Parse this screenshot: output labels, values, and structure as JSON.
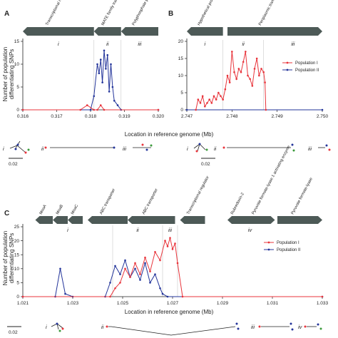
{
  "colors": {
    "population_1": "#e8343b",
    "population_2": "#23349a",
    "gene_arrow": "#4d5a57",
    "axis": "#222222"
  },
  "shared": {
    "ylabel_line1": "Number of population",
    "ylabel_line2": "differentiating SNPs",
    "xlabel": "Location in reference genome (Mb)",
    "scale_bar": "0.02"
  },
  "chart_data": [
    {
      "type": "line",
      "panel": "A",
      "xlim": [
        0.316,
        0.32
      ],
      "ylim": [
        0,
        15
      ],
      "xticks": [
        "0.316",
        "0.317",
        "0.318",
        "0.319",
        "0.320"
      ],
      "yticks": [
        "0",
        "5",
        "10",
        "15"
      ],
      "genes": [
        {
          "label": "Transcriptional regulator",
          "start": 0.316,
          "end": 0.3181,
          "dir": "left"
        },
        {
          "label": "MATE family transporter",
          "start": 0.3181,
          "end": 0.3189,
          "dir": "left"
        },
        {
          "label": "Polyphosphate phosphatase",
          "start": 0.3189,
          "end": 0.32,
          "dir": "left"
        }
      ],
      "regions": [
        {
          "label": "i",
          "start": 0.316,
          "end": 0.3181
        },
        {
          "label": "ii",
          "start": 0.3181,
          "end": 0.3189
        },
        {
          "label": "iii",
          "start": 0.3189,
          "end": 0.32
        }
      ],
      "series": [
        {
          "key": "population_1",
          "x": [
            0.316,
            0.3177,
            0.3179,
            0.3181,
            0.3182,
            0.3183,
            0.3184,
            0.32
          ],
          "y": [
            0,
            0,
            1,
            0,
            0,
            1,
            0,
            0
          ]
        },
        {
          "key": "population_2",
          "x": [
            0.316,
            0.318,
            0.3181,
            0.3182,
            0.31825,
            0.3183,
            0.31835,
            0.3184,
            0.31845,
            0.3185,
            0.31855,
            0.3186,
            0.31865,
            0.3187,
            0.3188,
            0.3189,
            0.32
          ],
          "y": [
            0,
            0,
            3,
            10,
            8,
            11,
            6,
            13,
            9,
            12,
            4,
            10,
            5,
            2,
            1,
            0,
            0
          ]
        }
      ]
    },
    {
      "type": "line",
      "panel": "B",
      "xlim": [
        2.747,
        2.75
      ],
      "ylim": [
        0,
        20
      ],
      "xticks": [
        "2.747",
        "2.748",
        "2.749",
        "2.750"
      ],
      "yticks": [
        "0",
        "5",
        "10",
        "15",
        "20"
      ],
      "genes": [
        {
          "label": "Hypothetical protein",
          "start": 2.747,
          "end": 2.7478,
          "dir": "left"
        },
        {
          "label": "Periplasmic transport containing pr...",
          "start": 2.7479,
          "end": 2.75,
          "dir": "right"
        }
      ],
      "regions": [
        {
          "label": "i",
          "start": 2.747,
          "end": 2.7478
        },
        {
          "label": "ii",
          "start": 2.7478,
          "end": 2.7487
        },
        {
          "label": "iii",
          "start": 2.7487,
          "end": 2.75
        }
      ],
      "legend": [
        "Population I",
        "Population II"
      ],
      "series": [
        {
          "key": "population_1",
          "x": [
            2.7472,
            2.74725,
            2.7473,
            2.74735,
            2.7474,
            2.74745,
            2.7475,
            2.74755,
            2.7476,
            2.74765,
            2.7477,
            2.74775,
            2.7478,
            2.74785,
            2.7479,
            2.74795,
            2.748,
            2.74805,
            2.7481,
            2.74815,
            2.7482,
            2.74825,
            2.7483,
            2.74835,
            2.7484,
            2.74845,
            2.7485,
            2.74855,
            2.7486,
            2.74865,
            2.7487,
            2.74873,
            2.74875
          ],
          "y": [
            0,
            3,
            2,
            4,
            1,
            2,
            3,
            2,
            4,
            3,
            5,
            4,
            3,
            6,
            10,
            8,
            17,
            11,
            9,
            12,
            11,
            14,
            17,
            10,
            9,
            7,
            12,
            15,
            10,
            12,
            11,
            8,
            0
          ]
        },
        {
          "key": "population_2",
          "x": [
            2.747,
            2.75
          ],
          "y": [
            0,
            0
          ]
        }
      ]
    },
    {
      "type": "line",
      "panel": "C",
      "xlim": [
        1.021,
        1.033
      ],
      "ylim": [
        0,
        25
      ],
      "xticks": [
        "1.021",
        "1.023",
        "1.025",
        "1.027",
        "1.029",
        "1.031",
        "1.033"
      ],
      "yticks": [
        "0",
        "5",
        "10",
        "15",
        "20",
        "25"
      ],
      "genes": [
        {
          "label": "MoaA",
          "start": 1.0215,
          "end": 1.0222,
          "dir": "left"
        },
        {
          "label": "MoaB",
          "start": 1.0222,
          "end": 1.0228,
          "dir": "left"
        },
        {
          "label": "MoaC",
          "start": 1.0228,
          "end": 1.0234,
          "dir": "left"
        },
        {
          "label": "ABC transporter",
          "start": 1.0236,
          "end": 1.0252,
          "dir": "left"
        },
        {
          "label": "ABC transporter",
          "start": 1.0252,
          "end": 1.0271,
          "dir": "left"
        },
        {
          "label": "Transcriptional regulator",
          "start": 1.0273,
          "end": 1.0283,
          "dir": "left"
        },
        {
          "label": "Rubredoxin-2",
          "start": 1.0292,
          "end": 1.0298,
          "dir": "left"
        },
        {
          "label": "Pyruvate formate-lyase 1 activating enzyme",
          "start": 1.0298,
          "end": 1.0311,
          "dir": "right"
        },
        {
          "label": "Pyruvate formate-lyase",
          "start": 1.0312,
          "end": 1.033,
          "dir": "right"
        }
      ],
      "regions": [
        {
          "label": "i",
          "start": 1.021,
          "end": 1.0246
        },
        {
          "label": "ii",
          "start": 1.0246,
          "end": 1.0266
        },
        {
          "label": "iii",
          "start": 1.0266,
          "end": 1.0272
        },
        {
          "label": "iv",
          "start": 1.0272,
          "end": 1.033
        }
      ],
      "legend": [
        "Population I",
        "Population II"
      ],
      "series": [
        {
          "key": "population_1",
          "x": [
            1.021,
            1.0245,
            1.0247,
            1.0249,
            1.0251,
            1.0253,
            1.0255,
            1.0257,
            1.0259,
            1.0261,
            1.0263,
            1.0265,
            1.0267,
            1.0268,
            1.0269,
            1.027,
            1.0271,
            1.0272,
            1.0274,
            1.033
          ],
          "y": [
            0,
            0,
            3,
            5,
            10,
            7,
            12,
            8,
            14,
            9,
            16,
            13,
            20,
            18,
            21,
            17,
            19,
            12,
            0,
            0
          ]
        },
        {
          "key": "population_2",
          "x": [
            1.021,
            1.0223,
            1.0225,
            1.0227,
            1.023,
            1.0243,
            1.0245,
            1.0247,
            1.0249,
            1.0251,
            1.0253,
            1.0255,
            1.0257,
            1.0259,
            1.0261,
            1.0263,
            1.0265,
            1.0266,
            1.0268,
            1.033
          ],
          "y": [
            0,
            0,
            10,
            1,
            0,
            0,
            5,
            11,
            8,
            13,
            7,
            10,
            6,
            12,
            5,
            8,
            3,
            1,
            0,
            0
          ]
        }
      ]
    }
  ]
}
